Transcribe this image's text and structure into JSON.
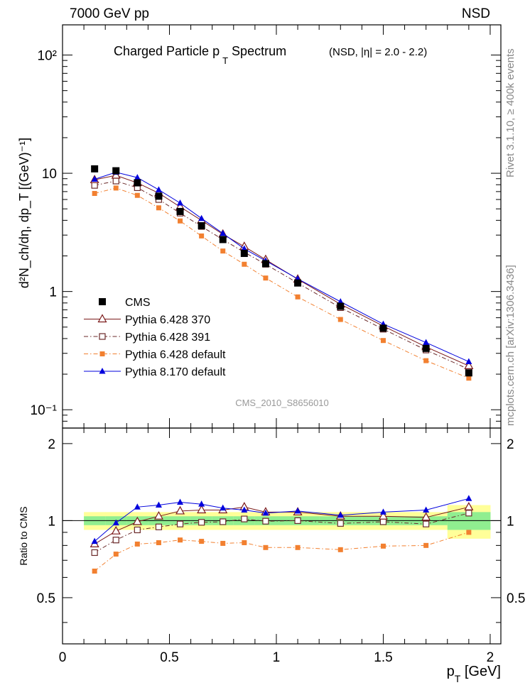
{
  "header": {
    "left": "7000 GeV pp",
    "right": "NSD"
  },
  "side_labels": {
    "rivet": "Rivet 3.1.10, ≥ 400k events",
    "source": "mcplots.cern.ch [arXiv:1306.3436]"
  },
  "chart_data": [
    {
      "type": "line",
      "panel": "main",
      "title": "Charged Particle p_T Spectrum",
      "title_main": "Charged Particle p",
      "title_sub": "T",
      "title_rest": " Spectrum",
      "subtitle": "(NSD, |η| = 2.0 - 2.2)",
      "watermark": "CMS_2010_S8656010",
      "ylabel": "d²N_ch/dη, dp_T [(GeV)⁻¹]",
      "yscale": "log",
      "xlim": [
        0,
        2.05
      ],
      "ylim": [
        0.07,
        180
      ],
      "ytick_labels": [
        "10⁻¹",
        "1",
        "10",
        "10²"
      ],
      "legend_position": "center-left",
      "x": [
        0.15,
        0.25,
        0.35,
        0.45,
        0.55,
        0.65,
        0.75,
        0.85,
        0.95,
        1.1,
        1.3,
        1.5,
        1.7,
        1.9
      ],
      "series": [
        {
          "name": "CMS",
          "color": "#000000",
          "marker": "square-filled",
          "line": "none",
          "values": [
            10.9,
            10.5,
            8.3,
            6.4,
            4.75,
            3.6,
            2.75,
            2.1,
            1.72,
            1.18,
            0.75,
            0.49,
            0.33,
            0.205
          ]
        },
        {
          "name": "Pythia 6.428 370",
          "color": "#7b1a1a",
          "marker": "triangle-open",
          "line": "solid",
          "values": [
            8.8,
            9.6,
            8.3,
            6.8,
            5.2,
            4.0,
            3.05,
            2.4,
            1.86,
            1.27,
            0.78,
            0.51,
            0.34,
            0.235
          ]
        },
        {
          "name": "Pythia 6.428 391",
          "color": "#6b2a2a",
          "marker": "square-open",
          "line": "dashdot",
          "values": [
            7.9,
            8.6,
            7.55,
            6.0,
            4.6,
            3.55,
            2.75,
            2.15,
            1.7,
            1.18,
            0.73,
            0.48,
            0.32,
            0.22
          ]
        },
        {
          "name": "Pythia 6.428 default",
          "color": "#f28030",
          "marker": "square-filled-small",
          "line": "dashdot",
          "values": [
            6.75,
            7.5,
            6.5,
            5.1,
            3.95,
            2.95,
            2.2,
            1.7,
            1.3,
            0.9,
            0.58,
            0.385,
            0.26,
            0.185
          ]
        },
        {
          "name": "Pythia 8.170 default",
          "color": "#0000dd",
          "marker": "triangle-filled",
          "line": "solid",
          "values": [
            8.9,
            10.2,
            9.2,
            7.25,
            5.6,
            4.15,
            3.1,
            2.3,
            1.82,
            1.28,
            0.82,
            0.53,
            0.37,
            0.255
          ]
        }
      ]
    },
    {
      "type": "line",
      "panel": "ratio",
      "ylabel": "Ratio to CMS",
      "xlabel": "p_T [GeV]",
      "xlabel_main": "p",
      "xlabel_sub": "T",
      "xlabel_rest": " [GeV]",
      "xlim": [
        0,
        2.05
      ],
      "ylim": [
        0.33,
        2.3
      ],
      "xticks": [
        0,
        0.5,
        1,
        1.5,
        2
      ],
      "xtick_labels": [
        "0",
        "0.5",
        "1",
        "1.5",
        "2"
      ],
      "yticks": [
        0.5,
        1,
        2
      ],
      "ytick_labels": [
        "0.5",
        "1",
        "2"
      ],
      "x": [
        0.15,
        0.25,
        0.35,
        0.45,
        0.55,
        0.65,
        0.75,
        0.85,
        0.95,
        1.1,
        1.3,
        1.5,
        1.7,
        1.9
      ],
      "bands": {
        "edges": [
          0.1,
          0.2,
          0.3,
          0.4,
          0.5,
          0.6,
          0.7,
          0.8,
          0.9,
          1.0,
          1.2,
          1.4,
          1.6,
          1.8,
          2.0
        ],
        "stat": [
          [
            0.96,
            1.04
          ],
          [
            0.96,
            1.04
          ],
          [
            0.96,
            1.04
          ],
          [
            0.96,
            1.04
          ],
          [
            0.96,
            1.04
          ],
          [
            0.96,
            1.04
          ],
          [
            0.96,
            1.04
          ],
          [
            0.96,
            1.04
          ],
          [
            0.96,
            1.04
          ],
          [
            0.96,
            1.04
          ],
          [
            0.96,
            1.04
          ],
          [
            0.96,
            1.04
          ],
          [
            0.96,
            1.04
          ],
          [
            0.92,
            1.08
          ]
        ],
        "syst": [
          [
            0.92,
            1.08
          ],
          [
            0.92,
            1.08
          ],
          [
            0.92,
            1.08
          ],
          [
            0.92,
            1.08
          ],
          [
            0.92,
            1.08
          ],
          [
            0.92,
            1.08
          ],
          [
            0.92,
            1.08
          ],
          [
            0.92,
            1.08
          ],
          [
            0.92,
            1.08
          ],
          [
            0.92,
            1.08
          ],
          [
            0.92,
            1.08
          ],
          [
            0.92,
            1.08
          ],
          [
            0.92,
            1.08
          ],
          [
            0.85,
            1.15
          ]
        ]
      },
      "stat_color": "#90ee90",
      "syst_color": "#ffff99",
      "series": [
        {
          "name": "Pythia 6.428 370",
          "color": "#7b1a1a",
          "marker": "triangle-open",
          "line": "solid",
          "values": [
            0.81,
            0.91,
            0.99,
            1.04,
            1.09,
            1.1,
            1.1,
            1.13,
            1.08,
            1.08,
            1.04,
            1.04,
            1.03,
            1.13
          ]
        },
        {
          "name": "Pythia 6.428 391",
          "color": "#6b2a2a",
          "marker": "square-open",
          "line": "dashdot",
          "values": [
            0.75,
            0.84,
            0.92,
            0.945,
            0.97,
            0.985,
            0.99,
            1.015,
            0.995,
            1.0,
            0.975,
            0.99,
            0.97,
            1.07
          ]
        },
        {
          "name": "Pythia 6.428 default",
          "color": "#f28030",
          "marker": "square-filled-small",
          "line": "dashdot",
          "values": [
            0.635,
            0.74,
            0.81,
            0.82,
            0.84,
            0.83,
            0.815,
            0.82,
            0.785,
            0.785,
            0.77,
            0.795,
            0.8,
            0.9
          ]
        },
        {
          "name": "Pythia 8.170 default",
          "color": "#0000dd",
          "marker": "triangle-filled",
          "line": "solid",
          "values": [
            0.83,
            0.98,
            1.13,
            1.15,
            1.18,
            1.16,
            1.12,
            1.1,
            1.07,
            1.09,
            1.05,
            1.08,
            1.1,
            1.22
          ]
        }
      ]
    }
  ]
}
